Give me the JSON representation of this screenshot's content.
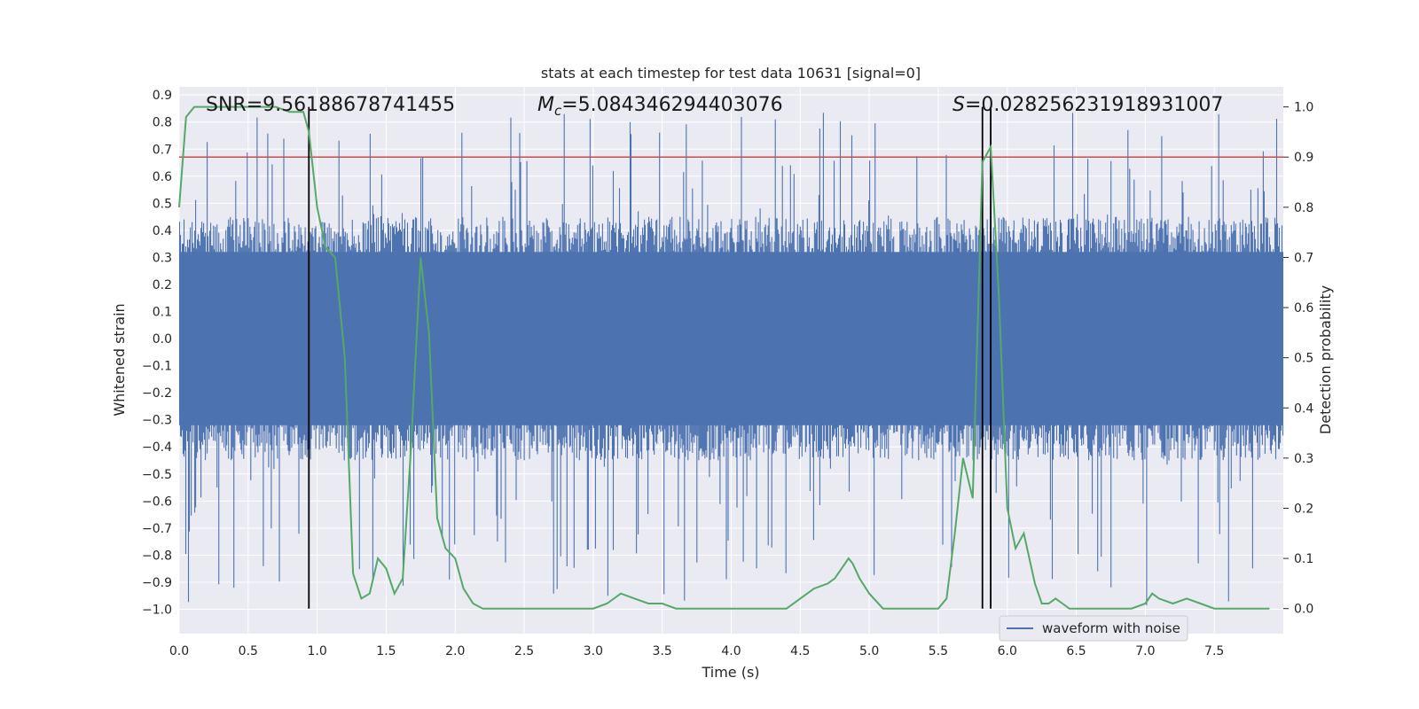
{
  "chart_data": {
    "type": "line",
    "title": "stats at each timestep for test data 10631 [signal=0]",
    "xlabel": "Time (s)",
    "ylabel_left": "Whitened strain",
    "ylabel_right": "Detection probability",
    "xlim": [
      0.0,
      8.0
    ],
    "ylim_left": [
      -1.09,
      0.93
    ],
    "ylim_right": [
      -0.05,
      1.04
    ],
    "x_ticks": [
      0.0,
      0.5,
      1.0,
      1.5,
      2.0,
      2.5,
      3.0,
      3.5,
      4.0,
      4.5,
      5.0,
      5.5,
      6.0,
      6.5,
      7.0,
      7.5
    ],
    "x_tick_labels": [
      "0.0",
      "0.5",
      "1.0",
      "1.5",
      "2.0",
      "2.5",
      "3.0",
      "3.5",
      "4.0",
      "4.5",
      "5.0",
      "5.5",
      "6.0",
      "6.5",
      "7.0",
      "7.5"
    ],
    "y_left_ticks": [
      0.9,
      0.8,
      0.7,
      0.6,
      0.5,
      0.4,
      0.3,
      0.2,
      0.1,
      0.0,
      -0.1,
      -0.2,
      -0.3,
      -0.4,
      -0.5,
      -0.6,
      -0.7,
      -0.8,
      -0.9,
      -1.0
    ],
    "y_left_tick_labels": [
      "0.9",
      "0.8",
      "0.7",
      "0.6",
      "0.5",
      "0.4",
      "0.3",
      "0.2",
      "0.1",
      "0.0",
      "−0.1",
      "−0.2",
      "−0.3",
      "−0.4",
      "−0.5",
      "−0.6",
      "−0.7",
      "−0.8",
      "−0.9",
      "−1.0"
    ],
    "y_right_ticks": [
      1.0,
      0.9,
      0.8,
      0.7,
      0.6,
      0.5,
      0.4,
      0.3,
      0.2,
      0.1,
      0.0
    ],
    "y_right_tick_labels": [
      "1.0",
      "0.9",
      "0.8",
      "0.7",
      "0.6",
      "0.5",
      "0.4",
      "0.3",
      "0.2",
      "0.1",
      "0.0"
    ],
    "grid": true,
    "legend": {
      "position": "lower-right",
      "entries": [
        "waveform with noise"
      ]
    },
    "annotations": {
      "snr": "SNR=9.56188678741455",
      "mc_symbol": "M",
      "mc_sub": "c",
      "mc_value": "=5.084346294403076",
      "s_symbol": "S",
      "s_value": "=0.028256231918931007"
    },
    "threshold": {
      "value": 0.9,
      "axis": "right",
      "color": "#c44e52"
    },
    "vertical_lines": [
      0.94,
      5.82,
      5.88
    ],
    "waveform": {
      "name": "waveform with noise",
      "color": "#4c72b0",
      "envelope_typical": [
        -0.45,
        0.45
      ],
      "extreme_range": [
        -1.0,
        0.84
      ]
    },
    "detection_probability": {
      "color": "#55a868",
      "x": [
        0.0,
        0.05,
        0.11,
        0.2,
        0.3,
        0.4,
        0.5,
        0.6,
        0.7,
        0.8,
        0.9,
        0.94,
        1.0,
        1.06,
        1.13,
        1.2,
        1.26,
        1.32,
        1.38,
        1.44,
        1.5,
        1.56,
        1.62,
        1.68,
        1.75,
        1.81,
        1.87,
        1.93,
        2.0,
        2.06,
        2.13,
        2.2,
        2.3,
        2.4,
        2.5,
        2.6,
        2.7,
        2.8,
        2.9,
        3.0,
        3.1,
        3.2,
        3.3,
        3.4,
        3.5,
        3.6,
        3.7,
        3.8,
        3.9,
        4.0,
        4.1,
        4.2,
        4.3,
        4.4,
        4.5,
        4.6,
        4.7,
        4.75,
        4.8,
        4.85,
        4.88,
        4.93,
        5.0,
        5.1,
        5.2,
        5.3,
        5.4,
        5.5,
        5.56,
        5.62,
        5.68,
        5.75,
        5.82,
        5.88,
        5.94,
        6.0,
        6.06,
        6.12,
        6.2,
        6.25,
        6.3,
        6.35,
        6.4,
        6.45,
        6.5,
        6.6,
        6.7,
        6.8,
        6.9,
        7.0,
        7.05,
        7.1,
        7.2,
        7.3,
        7.4,
        7.5,
        7.6,
        7.7,
        7.8,
        7.9
      ],
      "values": [
        0.8,
        0.98,
        1.0,
        1.0,
        1.0,
        1.0,
        1.0,
        1.0,
        1.0,
        0.99,
        0.99,
        0.95,
        0.8,
        0.72,
        0.7,
        0.5,
        0.07,
        0.02,
        0.03,
        0.1,
        0.08,
        0.03,
        0.06,
        0.32,
        0.7,
        0.55,
        0.18,
        0.12,
        0.1,
        0.04,
        0.01,
        0.0,
        0.0,
        0.0,
        0.0,
        0.0,
        0.0,
        0.0,
        0.0,
        0.0,
        0.01,
        0.03,
        0.02,
        0.01,
        0.01,
        0.0,
        0.0,
        0.0,
        0.0,
        0.0,
        0.0,
        0.0,
        0.0,
        0.0,
        0.02,
        0.04,
        0.05,
        0.06,
        0.08,
        0.1,
        0.09,
        0.06,
        0.03,
        0.0,
        0.0,
        0.0,
        0.0,
        0.0,
        0.02,
        0.15,
        0.3,
        0.22,
        0.89,
        0.92,
        0.62,
        0.2,
        0.12,
        0.15,
        0.05,
        0.01,
        0.01,
        0.02,
        0.01,
        0.0,
        0.0,
        0.0,
        0.0,
        0.0,
        0.0,
        0.01,
        0.03,
        0.02,
        0.01,
        0.02,
        0.01,
        0.0,
        0.0,
        0.0,
        0.0,
        0.0
      ]
    }
  }
}
